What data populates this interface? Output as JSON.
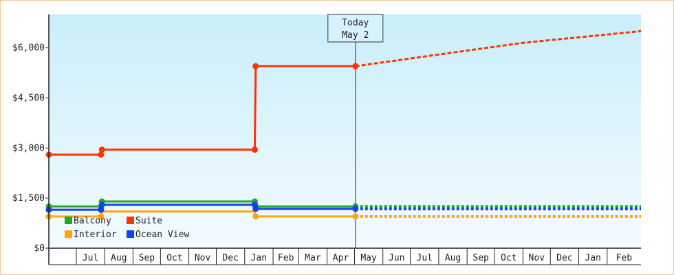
{
  "chart_data": {
    "type": "line",
    "title": "",
    "xlabel": "",
    "ylabel": "",
    "y_ticks": [
      {
        "value": 0,
        "label": "$0"
      },
      {
        "value": 1500,
        "label": "$1,500"
      },
      {
        "value": 3000,
        "label": "$3,000"
      },
      {
        "value": 4500,
        "label": "$4,500"
      },
      {
        "value": 6000,
        "label": "$6,000"
      }
    ],
    "ylim": [
      0,
      7000
    ],
    "xlim": [
      "2021-06-01",
      "2022-03-10"
    ],
    "month_ticks": [
      {
        "date": "2021-07-01",
        "label": "Jul"
      },
      {
        "date": "2021-08-01",
        "label": "Aug"
      },
      {
        "date": "2021-09-01",
        "label": "Sep"
      },
      {
        "date": "2021-10-01",
        "label": "Oct"
      },
      {
        "date": "2021-11-01",
        "label": "Nov"
      },
      {
        "date": "2021-12-01",
        "label": "Dec"
      },
      {
        "date": "2022-01-01",
        "label": "Jan"
      },
      {
        "date": "2022-02-01",
        "label": "Feb"
      },
      {
        "date": "2022-03-01",
        "label": "Mar"
      },
      {
        "date": "2022-04-01",
        "label": "Apr"
      },
      {
        "date": "2022-05-01",
        "label": "May"
      },
      {
        "date": "2022-06-01",
        "label": "Jun"
      },
      {
        "date": "2022-07-01",
        "label": "Jul"
      },
      {
        "date": "2022-08-01",
        "label": "Aug"
      },
      {
        "date": "2022-09-01",
        "label": "Sep"
      },
      {
        "date": "2022-10-01",
        "label": "Oct"
      },
      {
        "date": "2022-11-01",
        "label": "Nov"
      },
      {
        "date": "2022-12-01",
        "label": "Dec"
      },
      {
        "date": "2023-01-01",
        "label": "Jan"
      },
      {
        "date": "2023-02-01",
        "label": "Feb"
      }
    ],
    "today": {
      "date": "2022-05-02",
      "label_line1": "Today",
      "label_line2": "May 2"
    },
    "series": [
      {
        "name": "Suite",
        "color": "#ff3300",
        "points": [
          {
            "date": "2021-06-01",
            "value": 2800
          },
          {
            "date": "2021-07-28",
            "value": 2800
          },
          {
            "date": "2021-07-29",
            "value": 2950
          },
          {
            "date": "2022-01-12",
            "value": 2950
          },
          {
            "date": "2022-01-13",
            "value": 5450
          },
          {
            "date": "2022-05-02",
            "value": 5450
          }
        ],
        "markers": [
          {
            "date": "2021-06-01",
            "value": 2800
          },
          {
            "date": "2021-07-28",
            "value": 2800
          },
          {
            "date": "2021-07-29",
            "value": 2950
          },
          {
            "date": "2022-01-12",
            "value": 2950
          },
          {
            "date": "2022-01-13",
            "value": 5450
          },
          {
            "date": "2022-05-02",
            "value": 5450
          }
        ],
        "projection": [
          {
            "date": "2022-05-02",
            "value": 5450
          },
          {
            "date": "2022-08-01",
            "value": 5800
          },
          {
            "date": "2022-11-01",
            "value": 6150
          },
          {
            "date": "2023-03-10",
            "value": 6500
          }
        ]
      },
      {
        "name": "Balcony",
        "color": "#22aa22",
        "points": [
          {
            "date": "2021-06-01",
            "value": 1250
          },
          {
            "date": "2021-07-28",
            "value": 1250
          },
          {
            "date": "2021-07-29",
            "value": 1400
          },
          {
            "date": "2022-01-12",
            "value": 1400
          },
          {
            "date": "2022-01-13",
            "value": 1250
          },
          {
            "date": "2022-05-02",
            "value": 1250
          }
        ],
        "markers": [
          {
            "date": "2021-06-01",
            "value": 1250
          },
          {
            "date": "2021-07-28",
            "value": 1250
          },
          {
            "date": "2021-07-29",
            "value": 1400
          },
          {
            "date": "2022-01-12",
            "value": 1400
          },
          {
            "date": "2022-01-13",
            "value": 1250
          },
          {
            "date": "2022-05-02",
            "value": 1250
          }
        ],
        "projection": [
          {
            "date": "2022-05-02",
            "value": 1250
          },
          {
            "date": "2023-03-10",
            "value": 1250
          }
        ]
      },
      {
        "name": "Ocean View",
        "color": "#1144ee",
        "points": [
          {
            "date": "2021-06-01",
            "value": 1150
          },
          {
            "date": "2021-07-28",
            "value": 1150
          },
          {
            "date": "2021-07-29",
            "value": 1300
          },
          {
            "date": "2022-01-12",
            "value": 1300
          },
          {
            "date": "2022-01-13",
            "value": 1180
          },
          {
            "date": "2022-05-02",
            "value": 1180
          }
        ],
        "markers": [
          {
            "date": "2021-06-01",
            "value": 1150
          },
          {
            "date": "2021-07-28",
            "value": 1150
          },
          {
            "date": "2021-07-29",
            "value": 1300
          },
          {
            "date": "2022-01-12",
            "value": 1300
          },
          {
            "date": "2022-01-13",
            "value": 1180
          },
          {
            "date": "2022-05-02",
            "value": 1180
          }
        ],
        "projection": [
          {
            "date": "2022-05-02",
            "value": 1180
          },
          {
            "date": "2023-03-10",
            "value": 1180
          }
        ]
      },
      {
        "name": "Interior",
        "color": "#ffa511",
        "points": [
          {
            "date": "2021-06-01",
            "value": 950
          },
          {
            "date": "2021-07-28",
            "value": 950
          },
          {
            "date": "2021-07-29",
            "value": 1100
          },
          {
            "date": "2022-01-12",
            "value": 1100
          },
          {
            "date": "2022-01-13",
            "value": 950
          },
          {
            "date": "2022-05-02",
            "value": 950
          }
        ],
        "markers": [
          {
            "date": "2021-06-01",
            "value": 950
          },
          {
            "date": "2021-07-28",
            "value": 950
          },
          {
            "date": "2022-01-13",
            "value": 950
          },
          {
            "date": "2022-05-02",
            "value": 950
          }
        ],
        "projection": [
          {
            "date": "2022-05-02",
            "value": 950
          },
          {
            "date": "2023-03-10",
            "value": 950
          }
        ]
      }
    ],
    "legend": [
      {
        "name": "Balcony",
        "color": "#22aa22"
      },
      {
        "name": "Suite",
        "color": "#ff3300"
      },
      {
        "name": "Interior",
        "color": "#ffa511"
      },
      {
        "name": "Ocean View",
        "color": "#1144ee"
      }
    ],
    "legend_placement": "bottom-left",
    "grid": false
  }
}
